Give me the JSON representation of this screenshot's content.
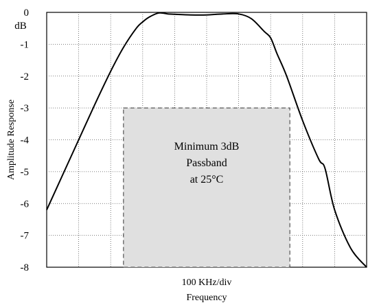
{
  "chart_data": {
    "type": "line",
    "title": "",
    "xlabel": "Frequency",
    "x_scale_note": "100 KHz/div",
    "ylabel": "Amplitude Response",
    "y_unit": "dB",
    "ylim": [
      -8,
      0
    ],
    "y_ticks": [
      "0",
      "-1",
      "-2",
      "-3",
      "-4",
      "-5",
      "-6",
      "-7",
      "-8"
    ],
    "x_divisions": 10,
    "grid": true,
    "grid_style": "dotted",
    "x": [
      0,
      0.5,
      1,
      1.5,
      2,
      2.4,
      2.8,
      3,
      3.2,
      3.5,
      3.8,
      4,
      4.5,
      5,
      5.5,
      6,
      6.4,
      6.8,
      7,
      7.2,
      7.5,
      8,
      8.5,
      8.7,
      9,
      9.5,
      10
    ],
    "series": [
      {
        "values": [
          -6.2,
          -5.1,
          -4,
          -2.9,
          -1.85,
          -1.1,
          -0.5,
          -0.3,
          -0.15,
          -0.02,
          -0.05,
          -0.06,
          -0.08,
          -0.08,
          -0.05,
          -0.05,
          -0.2,
          -0.6,
          -0.8,
          -1.3,
          -2.0,
          -3.4,
          -4.6,
          -4.9,
          -6.2,
          -7.4,
          -8.0
        ],
        "color": "#000000"
      }
    ],
    "annotations": [
      {
        "text_lines": [
          "Minimum 3dB",
          "Passband",
          "at 25°C"
        ],
        "region": {
          "x": [
            2.4,
            7.6
          ],
          "y": [
            -8,
            -3
          ]
        },
        "fill": "#e0e0e0",
        "border": "dashed"
      }
    ]
  }
}
